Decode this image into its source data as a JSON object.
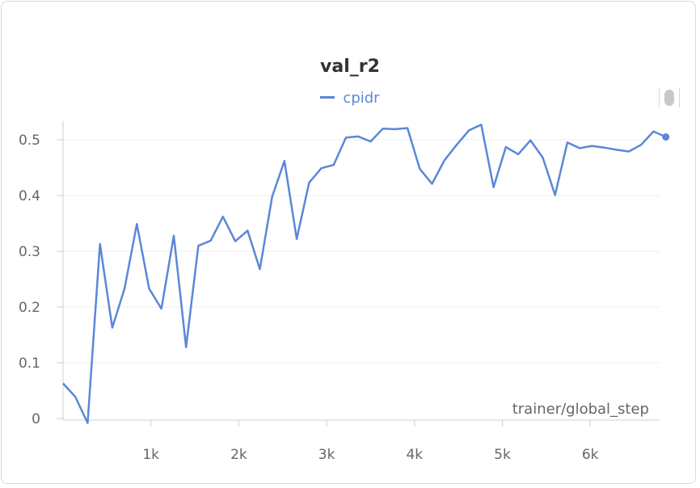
{
  "chart_data": {
    "type": "line",
    "title": "val_r2",
    "xlabel": "trainer/global_step",
    "ylabel": "",
    "xlim": [
      0,
      6900
    ],
    "ylim": [
      -0.01,
      0.55
    ],
    "x_ticks": [
      1000,
      2000,
      3000,
      4000,
      5000,
      6000
    ],
    "x_tick_labels": [
      "1k",
      "2k",
      "3k",
      "4k",
      "5k",
      "6k"
    ],
    "y_ticks": [
      0,
      0.1,
      0.2,
      0.3,
      0.4,
      0.5
    ],
    "y_tick_labels": [
      "0",
      "0.1",
      "0.2",
      "0.3",
      "0.4",
      "0.5"
    ],
    "grid": true,
    "legend_position": "top-center",
    "series": [
      {
        "name": "cpidr",
        "color": "#5b87d8",
        "x": [
          0,
          140,
          280,
          420,
          560,
          700,
          840,
          980,
          1120,
          1260,
          1400,
          1540,
          1680,
          1820,
          1960,
          2100,
          2240,
          2380,
          2520,
          2660,
          2800,
          2940,
          3080,
          3220,
          3360,
          3500,
          3640,
          3780,
          3920,
          4060,
          4200,
          4340,
          4480,
          4620,
          4760,
          4900,
          5040,
          5180,
          5320,
          5460,
          5600,
          5740,
          5880,
          6020,
          6160,
          6300,
          6440,
          6580,
          6720,
          6860
        ],
        "y": [
          0.063,
          0.039,
          -0.008,
          0.313,
          0.163,
          0.233,
          0.349,
          0.233,
          0.197,
          0.328,
          0.128,
          0.31,
          0.319,
          0.362,
          0.318,
          0.337,
          0.268,
          0.398,
          0.462,
          0.322,
          0.423,
          0.449,
          0.455,
          0.504,
          0.506,
          0.497,
          0.52,
          0.519,
          0.521,
          0.448,
          0.421,
          0.463,
          0.491,
          0.517,
          0.527,
          0.415,
          0.487,
          0.474,
          0.499,
          0.468,
          0.401,
          0.495,
          0.485,
          0.489,
          0.486,
          0.482,
          0.479,
          0.491,
          0.515,
          0.505
        ]
      }
    ]
  },
  "ui": {
    "title": "val_r2",
    "legend_label": "cpidr",
    "xlabel": "trainer/global_step"
  }
}
